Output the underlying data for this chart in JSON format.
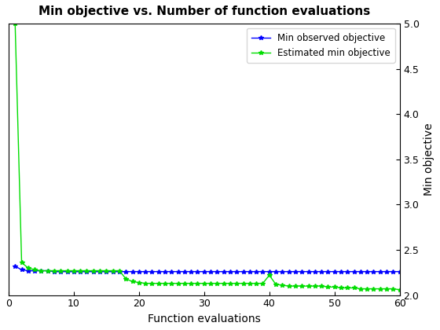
{
  "title": "Min objective vs. Number of function evaluations",
  "xlabel": "Function evaluations",
  "ylabel": "Min objective",
  "blue_label": "Min observed objective",
  "green_label": "Estimated min objective",
  "blue_color": "#0000ff",
  "green_color": "#00dd00",
  "xlim": [
    0,
    60
  ],
  "ylim": [
    2.0,
    5.0
  ],
  "yticks": [
    2.0,
    2.5,
    3.0,
    3.5,
    4.0,
    4.5,
    5.0
  ],
  "xticks": [
    0,
    10,
    20,
    30,
    40,
    50,
    60
  ],
  "blue_x": [
    1,
    2,
    3,
    4,
    5,
    6,
    7,
    8,
    9,
    10,
    11,
    12,
    13,
    14,
    15,
    16,
    17,
    18,
    19,
    20,
    21,
    22,
    23,
    24,
    25,
    26,
    27,
    28,
    29,
    30,
    31,
    32,
    33,
    34,
    35,
    36,
    37,
    38,
    39,
    40,
    41,
    42,
    43,
    44,
    45,
    46,
    47,
    48,
    49,
    50,
    51,
    52,
    53,
    54,
    55,
    56,
    57,
    58,
    59,
    60
  ],
  "blue_y": [
    2.32,
    2.28,
    2.27,
    2.27,
    2.27,
    2.27,
    2.26,
    2.26,
    2.26,
    2.26,
    2.26,
    2.26,
    2.26,
    2.26,
    2.26,
    2.26,
    2.26,
    2.26,
    2.26,
    2.26,
    2.26,
    2.26,
    2.26,
    2.26,
    2.26,
    2.26,
    2.26,
    2.26,
    2.26,
    2.26,
    2.26,
    2.26,
    2.26,
    2.26,
    2.26,
    2.26,
    2.26,
    2.26,
    2.26,
    2.26,
    2.26,
    2.26,
    2.26,
    2.26,
    2.26,
    2.26,
    2.26,
    2.26,
    2.26,
    2.26,
    2.26,
    2.26,
    2.26,
    2.26,
    2.26,
    2.26,
    2.26,
    2.26,
    2.26,
    2.26
  ],
  "green_x": [
    1,
    2,
    3,
    4,
    5,
    6,
    7,
    8,
    9,
    10,
    11,
    12,
    13,
    14,
    15,
    16,
    17,
    18,
    19,
    20,
    21,
    22,
    23,
    24,
    25,
    26,
    27,
    28,
    29,
    30,
    31,
    32,
    33,
    34,
    35,
    36,
    37,
    38,
    39,
    40,
    41,
    42,
    43,
    44,
    45,
    46,
    47,
    48,
    49,
    50,
    51,
    52,
    53,
    54,
    55,
    56,
    57,
    58,
    59,
    60
  ],
  "green_y": [
    5.0,
    2.36,
    2.3,
    2.28,
    2.27,
    2.27,
    2.27,
    2.27,
    2.27,
    2.27,
    2.27,
    2.27,
    2.27,
    2.27,
    2.27,
    2.27,
    2.27,
    2.18,
    2.15,
    2.14,
    2.13,
    2.13,
    2.13,
    2.13,
    2.13,
    2.13,
    2.13,
    2.13,
    2.13,
    2.13,
    2.13,
    2.13,
    2.13,
    2.13,
    2.13,
    2.13,
    2.13,
    2.13,
    2.13,
    2.22,
    2.12,
    2.11,
    2.1,
    2.1,
    2.1,
    2.1,
    2.1,
    2.1,
    2.09,
    2.09,
    2.08,
    2.08,
    2.08,
    2.07,
    2.07,
    2.07,
    2.07,
    2.07,
    2.07,
    2.06
  ],
  "background_color": "#ffffff",
  "title_fontsize": 11,
  "label_fontsize": 10,
  "tick_fontsize": 9,
  "marker": "*",
  "markersize": 4,
  "linewidth": 1.0
}
